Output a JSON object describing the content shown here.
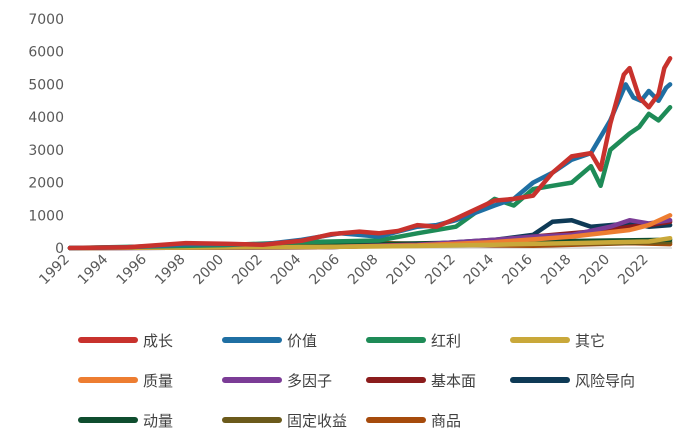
{
  "chart_data": {
    "type": "line",
    "title": "",
    "xlabel": "",
    "ylabel": "",
    "xlim": [
      1992,
      2023.2
    ],
    "ylim": [
      0,
      7000
    ],
    "grid": false,
    "legend_position": "bottom",
    "x_ticks": [
      "1992",
      "1994",
      "1996",
      "1998",
      "2000",
      "2002",
      "2004",
      "2006",
      "2008",
      "2010",
      "2012",
      "2014",
      "2016",
      "2018",
      "2020",
      "2022"
    ],
    "y_ticks": [
      "0",
      "1000",
      "2000",
      "3000",
      "4000",
      "5000",
      "6000",
      "7000"
    ],
    "series": [
      {
        "name": "成长",
        "color": "#C8322D",
        "points": [
          [
            1992,
            0
          ],
          [
            1995,
            20
          ],
          [
            1998,
            150
          ],
          [
            2000,
            130
          ],
          [
            2002,
            100
          ],
          [
            2004,
            220
          ],
          [
            2005.5,
            420
          ],
          [
            2007,
            500
          ],
          [
            2008,
            450
          ],
          [
            2009,
            520
          ],
          [
            2010,
            700
          ],
          [
            2011,
            650
          ],
          [
            2012,
            900
          ],
          [
            2014,
            1450
          ],
          [
            2015,
            1500
          ],
          [
            2016,
            1600
          ],
          [
            2017,
            2300
          ],
          [
            2018,
            2800
          ],
          [
            2019,
            2900
          ],
          [
            2019.5,
            2400
          ],
          [
            2020,
            3800
          ],
          [
            2020.7,
            5300
          ],
          [
            2021,
            5500
          ],
          [
            2021.5,
            4600
          ],
          [
            2022,
            4300
          ],
          [
            2022.5,
            4700
          ],
          [
            2022.8,
            5500
          ],
          [
            2023.1,
            5800
          ]
        ]
      },
      {
        "name": "价值",
        "color": "#1F6FA3",
        "points": [
          [
            1992,
            0
          ],
          [
            1995,
            20
          ],
          [
            1998,
            110
          ],
          [
            2000,
            120
          ],
          [
            2002,
            110
          ],
          [
            2004,
            250
          ],
          [
            2006,
            450
          ],
          [
            2007,
            400
          ],
          [
            2008,
            350
          ],
          [
            2009,
            500
          ],
          [
            2010,
            650
          ],
          [
            2011,
            700
          ],
          [
            2012,
            850
          ],
          [
            2014,
            1300
          ],
          [
            2015,
            1500
          ],
          [
            2016,
            2000
          ],
          [
            2017,
            2300
          ],
          [
            2018,
            2700
          ],
          [
            2019,
            2900
          ],
          [
            2020,
            3900
          ],
          [
            2020.8,
            5000
          ],
          [
            2021.2,
            4600
          ],
          [
            2021.6,
            4500
          ],
          [
            2022,
            4800
          ],
          [
            2022.5,
            4500
          ],
          [
            2022.9,
            4900
          ],
          [
            2023.1,
            5000
          ]
        ]
      },
      {
        "name": "红利",
        "color": "#1E8B57",
        "points": [
          [
            1992,
            0
          ],
          [
            2000,
            90
          ],
          [
            2004,
            180
          ],
          [
            2008,
            230
          ],
          [
            2010,
            450
          ],
          [
            2012,
            650
          ],
          [
            2014,
            1500
          ],
          [
            2015,
            1300
          ],
          [
            2016,
            1800
          ],
          [
            2017,
            1900
          ],
          [
            2018,
            2000
          ],
          [
            2019,
            2500
          ],
          [
            2019.5,
            1900
          ],
          [
            2020,
            3000
          ],
          [
            2021,
            3500
          ],
          [
            2021.5,
            3700
          ],
          [
            2022,
            4100
          ],
          [
            2022.5,
            3900
          ],
          [
            2023.1,
            4300
          ]
        ]
      },
      {
        "name": "其它",
        "color": "#C9A83A",
        "points": [
          [
            1992,
            0
          ],
          [
            2005,
            30
          ],
          [
            2010,
            60
          ],
          [
            2014,
            100
          ],
          [
            2018,
            150
          ],
          [
            2022,
            200
          ],
          [
            2023.1,
            300
          ]
        ]
      },
      {
        "name": "质量",
        "color": "#ED7D31",
        "points": [
          [
            1992,
            0
          ],
          [
            2005,
            30
          ],
          [
            2010,
            80
          ],
          [
            2014,
            180
          ],
          [
            2018,
            350
          ],
          [
            2021,
            550
          ],
          [
            2022,
            700
          ],
          [
            2023.1,
            1000
          ]
        ]
      },
      {
        "name": "多因子",
        "color": "#7B3C96",
        "points": [
          [
            1992,
            0
          ],
          [
            2005,
            20
          ],
          [
            2010,
            100
          ],
          [
            2014,
            250
          ],
          [
            2016,
            350
          ],
          [
            2018,
            400
          ],
          [
            2020,
            650
          ],
          [
            2021,
            850
          ],
          [
            2022,
            750
          ],
          [
            2023.1,
            850
          ]
        ]
      },
      {
        "name": "基本面",
        "color": "#8B1C1C",
        "points": [
          [
            1992,
            0
          ],
          [
            2005,
            20
          ],
          [
            2010,
            100
          ],
          [
            2014,
            220
          ],
          [
            2016,
            350
          ],
          [
            2018,
            450
          ],
          [
            2020,
            550
          ],
          [
            2021,
            650
          ],
          [
            2022,
            700
          ],
          [
            2023.1,
            800
          ]
        ]
      },
      {
        "name": "风险导向",
        "color": "#0E3A56",
        "points": [
          [
            1992,
            0
          ],
          [
            2005,
            20
          ],
          [
            2010,
            100
          ],
          [
            2014,
            250
          ],
          [
            2016,
            400
          ],
          [
            2017,
            800
          ],
          [
            2018,
            850
          ],
          [
            2019,
            650
          ],
          [
            2020,
            700
          ],
          [
            2021,
            750
          ],
          [
            2022,
            650
          ],
          [
            2023.1,
            700
          ]
        ]
      },
      {
        "name": "动量",
        "color": "#0F4D2E",
        "points": [
          [
            1992,
            0
          ],
          [
            2000,
            40
          ],
          [
            2005,
            80
          ],
          [
            2008,
            120
          ],
          [
            2012,
            160
          ],
          [
            2016,
            200
          ],
          [
            2020,
            230
          ],
          [
            2023.1,
            250
          ]
        ]
      },
      {
        "name": "固定收益",
        "color": "#6B5A1B",
        "points": [
          [
            1992,
            0
          ],
          [
            2000,
            30
          ],
          [
            2005,
            60
          ],
          [
            2010,
            90
          ],
          [
            2015,
            120
          ],
          [
            2020,
            150
          ],
          [
            2023.1,
            180
          ]
        ]
      },
      {
        "name": "商品",
        "color": "#A64B0C",
        "points": [
          [
            1992,
            0
          ],
          [
            2000,
            50
          ],
          [
            2004,
            80
          ],
          [
            2008,
            150
          ],
          [
            2011,
            120
          ],
          [
            2014,
            80
          ],
          [
            2016,
            70
          ],
          [
            2018,
            100
          ],
          [
            2021,
            150
          ],
          [
            2023.1,
            120
          ]
        ]
      }
    ]
  }
}
